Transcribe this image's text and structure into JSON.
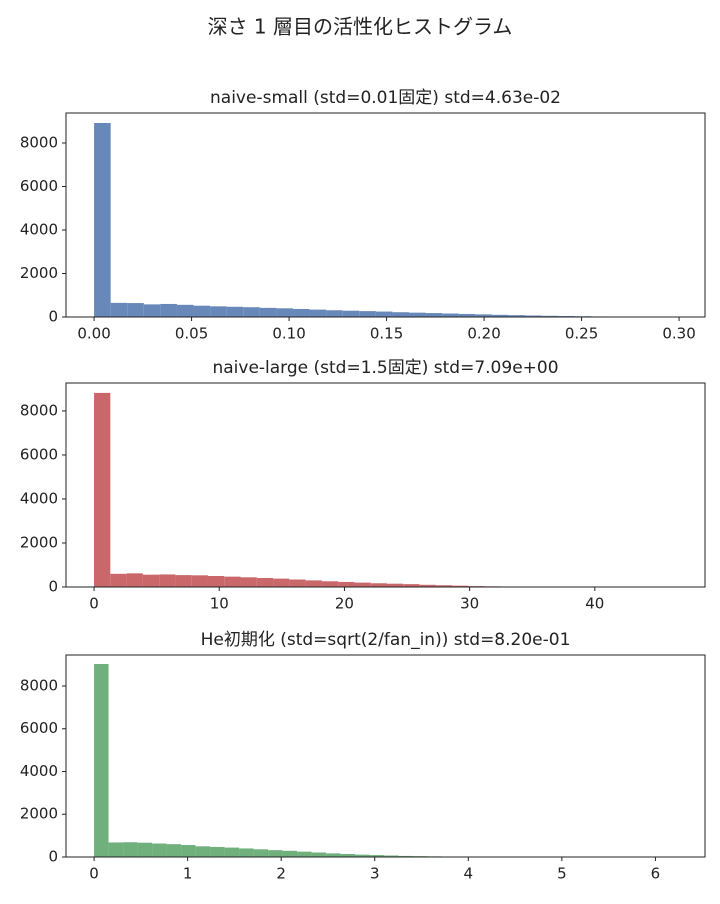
{
  "title": "深さ 1 層目の活性化ヒストグラム",
  "chart_data": [
    {
      "type": "histogram",
      "title": "naive-small (std=0.01固定)   std=4.63e-02",
      "color": "#6788b8",
      "bins": [
        0,
        0.0085,
        0.017,
        0.0255,
        0.034,
        0.0425,
        0.051,
        0.0595,
        0.068,
        0.0765,
        0.085,
        0.0935,
        0.102,
        0.1105,
        0.119,
        0.1275,
        0.136,
        0.1445,
        0.153,
        0.1615,
        0.17,
        0.1785,
        0.187,
        0.1955,
        0.204,
        0.2125,
        0.221,
        0.2295,
        0.238,
        0.2465,
        0.255,
        0.2635,
        0.272,
        0.2805,
        0.289,
        0.2975
      ],
      "values": [
        8920,
        650,
        640,
        580,
        600,
        560,
        520,
        490,
        470,
        450,
        420,
        400,
        370,
        340,
        310,
        290,
        270,
        250,
        220,
        200,
        180,
        160,
        140,
        120,
        100,
        85,
        70,
        55,
        45,
        35,
        25,
        20,
        15,
        10,
        5
      ],
      "xlim": [
        -0.0144,
        0.3133
      ],
      "ylim": [
        0,
        9380
      ],
      "xticks": [
        {
          "value": 0,
          "label": "0.00"
        },
        0.05,
        {
          "value": 0.1,
          "label": "0.10"
        },
        0.15,
        {
          "value": 0.2,
          "label": "0.20"
        },
        0.25,
        {
          "value": 0.3,
          "label": "0.30"
        }
      ],
      "yticks": [
        0,
        2000,
        4000,
        6000,
        8000
      ]
    },
    {
      "type": "histogram",
      "title": "naive-large (std=1.5固定)   std=7.09e+00",
      "color": "#c9676a",
      "bins": [
        0,
        1.3,
        2.6,
        3.9,
        5.2,
        6.5,
        7.8,
        9.1,
        10.4,
        11.7,
        13,
        14.3,
        15.6,
        16.9,
        18.2,
        19.5,
        20.8,
        22.1,
        23.4,
        24.7,
        26,
        27.3,
        28.6,
        29.9,
        31.2,
        32.5,
        33.8,
        35.1,
        36.4,
        37.7,
        39,
        40.3,
        41.6,
        42.9,
        44.2,
        45.5,
        46.8
      ],
      "values": [
        8820,
        600,
        620,
        560,
        570,
        540,
        530,
        500,
        470,
        440,
        410,
        380,
        340,
        300,
        260,
        230,
        200,
        170,
        150,
        130,
        100,
        80,
        60,
        40,
        30,
        20,
        15,
        10,
        8,
        5,
        4,
        3,
        2,
        1,
        1,
        1
      ],
      "xlim": [
        -2.24,
        48.8
      ],
      "ylim": [
        0,
        9270
      ],
      "xticks": [
        0,
        10,
        20,
        30,
        40
      ],
      "yticks": [
        0,
        2000,
        4000,
        6000,
        8000
      ]
    },
    {
      "type": "histogram",
      "title": "He初期化 (std=sqrt(2/fan_in))   std=8.20e-01",
      "color": "#6fb07c",
      "bins": [
        0,
        0.155,
        0.31,
        0.465,
        0.62,
        0.775,
        0.93,
        1.085,
        1.24,
        1.395,
        1.55,
        1.705,
        1.86,
        2.015,
        2.17,
        2.325,
        2.48,
        2.635,
        2.79,
        2.945,
        3.1,
        3.255,
        3.41,
        3.565,
        3.72,
        3.875,
        4.03,
        4.185,
        4.34,
        4.495,
        4.65,
        4.805,
        4.96,
        5.115,
        5.27,
        5.425,
        5.58,
        5.735,
        5.89,
        6.045,
        6.2
      ],
      "values": [
        9030,
        680,
        690,
        670,
        630,
        600,
        560,
        500,
        470,
        440,
        400,
        360,
        320,
        290,
        250,
        210,
        170,
        140,
        110,
        90,
        70,
        50,
        40,
        30,
        20,
        15,
        10,
        8,
        6,
        4,
        3,
        2,
        2,
        1,
        1,
        1,
        1,
        1,
        1,
        1
      ],
      "xlim": [
        -0.3,
        6.53
      ],
      "ylim": [
        0,
        9450
      ],
      "xticks": [
        0,
        1,
        2,
        3,
        4,
        5,
        6
      ],
      "yticks": [
        0,
        2000,
        4000,
        6000,
        8000
      ]
    }
  ]
}
